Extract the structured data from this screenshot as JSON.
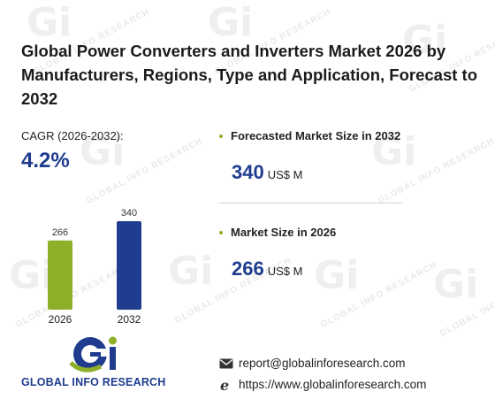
{
  "title": "Global Power Converters and Inverters Market 2026 by Manufacturers, Regions, Type and Application, Forecast to 2032",
  "cagr": {
    "label": "CAGR (2026-2032):",
    "value": "4.2%"
  },
  "cards": [
    {
      "title": "Forecasted Market Size in 2032",
      "value": "340",
      "unit": "US$ M"
    },
    {
      "title": "Market Size in 2026",
      "value": "266",
      "unit": "US$ M"
    }
  ],
  "brand": {
    "name": "GLOBAL INFO RESEARCH",
    "watermark": "GLOBAL INFO RESEARCH",
    "logo_mark": "Gi"
  },
  "contact": {
    "email": "report@globalinforesearch.com",
    "website": "https://www.globalinforesearch.com"
  },
  "colors": {
    "bar_2026": "#8db02a",
    "bar_2032": "#1f3c8f",
    "accent": "#1f3c8f",
    "bullet": "#8db02a"
  },
  "chart_data": {
    "type": "bar",
    "categories": [
      "2026",
      "2032"
    ],
    "values": [
      266,
      340
    ],
    "ylim": [
      0,
      340
    ],
    "grid": false,
    "title": "",
    "xlabel": "",
    "ylabel": ""
  }
}
